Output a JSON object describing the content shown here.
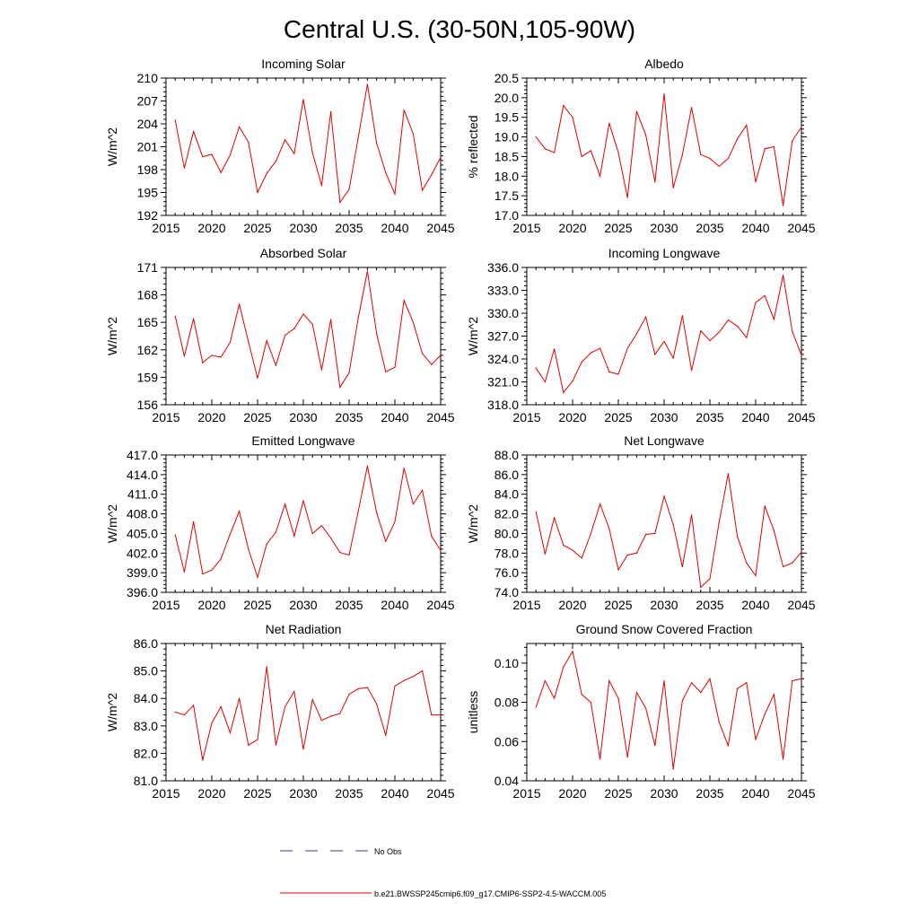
{
  "figure": {
    "title": "Central U.S. (30-50N,105-90W)",
    "legend": {
      "obs_label": "No Obs",
      "model_label": "b.e21.BWSSP245cmip6.f09_g17.CMIP6-SSP2-4.5-WACCM.005",
      "obs_color": "#3a3aa8",
      "model_color": "#e00000"
    }
  },
  "chart_data": [
    {
      "type": "line",
      "title": "Incoming Solar",
      "xlabel": "",
      "ylabel": "W/m^2",
      "xlim": [
        2015,
        2045
      ],
      "ylim": [
        192,
        210
      ],
      "xticks": [
        2015,
        2020,
        2025,
        2030,
        2035,
        2040,
        2045
      ],
      "yticks": [
        192,
        195,
        198,
        201,
        204,
        207,
        210
      ],
      "ytick_labels": [
        "192",
        "195",
        "198",
        "201",
        "204",
        "207",
        "210"
      ],
      "series": [
        {
          "name": "b.e21.BWSSP245cmip6.f09_g17.CMIP6-SSP2-4.5-WACCM.005",
          "x": [
            2016,
            2017,
            2018,
            2019,
            2020,
            2021,
            2022,
            2023,
            2024,
            2025,
            2026,
            2027,
            2028,
            2029,
            2030,
            2031,
            2032,
            2033,
            2034,
            2035,
            2036,
            2037,
            2038,
            2039,
            2040,
            2041,
            2042,
            2043,
            2044,
            2045
          ],
          "values": [
            204.5,
            198.2,
            203.0,
            199.7,
            200.0,
            197.6,
            199.9,
            203.6,
            201.6,
            195.0,
            197.5,
            199.1,
            201.9,
            200.1,
            207.2,
            200.2,
            195.9,
            205.6,
            193.7,
            195.4,
            202.2,
            209.2,
            201.5,
            197.6,
            194.8,
            205.8,
            202.7,
            195.3,
            197.3,
            199.6
          ]
        }
      ]
    },
    {
      "type": "line",
      "title": "Albedo",
      "xlabel": "",
      "ylabel": "% reflected",
      "xlim": [
        2015,
        2045
      ],
      "ylim": [
        17.0,
        20.5
      ],
      "xticks": [
        2015,
        2020,
        2025,
        2030,
        2035,
        2040,
        2045
      ],
      "yticks": [
        17.0,
        17.5,
        18.0,
        18.5,
        19.0,
        19.5,
        20.0,
        20.5
      ],
      "ytick_labels": [
        "17.0",
        "17.5",
        "18.0",
        "18.5",
        "19.0",
        "19.5",
        "20.0",
        "20.5"
      ],
      "series": [
        {
          "name": "b.e21.BWSSP245cmip6.f09_g17.CMIP6-SSP2-4.5-WACCM.005",
          "x": [
            2016,
            2017,
            2018,
            2019,
            2020,
            2021,
            2022,
            2023,
            2024,
            2025,
            2026,
            2027,
            2028,
            2029,
            2030,
            2031,
            2032,
            2033,
            2034,
            2035,
            2036,
            2037,
            2038,
            2039,
            2040,
            2041,
            2042,
            2043,
            2044,
            2045
          ],
          "values": [
            19.0,
            18.7,
            18.6,
            19.8,
            19.5,
            18.5,
            18.65,
            18.0,
            19.35,
            18.6,
            17.45,
            19.65,
            19.05,
            17.85,
            20.1,
            17.7,
            18.55,
            19.75,
            18.55,
            18.45,
            18.25,
            18.45,
            18.95,
            19.3,
            17.85,
            18.7,
            18.75,
            17.25,
            18.9,
            19.25
          ]
        }
      ]
    },
    {
      "type": "line",
      "title": "Absorbed Solar",
      "xlabel": "",
      "ylabel": "W/m^2",
      "xlim": [
        2015,
        2045
      ],
      "ylim": [
        156,
        171
      ],
      "xticks": [
        2015,
        2020,
        2025,
        2030,
        2035,
        2040,
        2045
      ],
      "yticks": [
        156,
        159,
        162,
        165,
        168,
        171
      ],
      "ytick_labels": [
        "156",
        "159",
        "162",
        "165",
        "168",
        "171"
      ],
      "series": [
        {
          "name": "b.e21.BWSSP245cmip6.f09_g17.CMIP6-SSP2-4.5-WACCM.005",
          "x": [
            2016,
            2017,
            2018,
            2019,
            2020,
            2021,
            2022,
            2023,
            2024,
            2025,
            2026,
            2027,
            2028,
            2029,
            2030,
            2031,
            2032,
            2033,
            2034,
            2035,
            2036,
            2037,
            2038,
            2039,
            2040,
            2041,
            2042,
            2043,
            2044,
            2045
          ],
          "values": [
            165.7,
            161.3,
            165.4,
            160.6,
            161.4,
            161.2,
            162.8,
            167.0,
            162.9,
            158.9,
            163.0,
            160.3,
            163.6,
            164.3,
            165.9,
            164.8,
            159.8,
            165.3,
            157.9,
            159.5,
            165.5,
            170.6,
            163.8,
            159.6,
            160.1,
            167.4,
            165.0,
            161.6,
            160.4,
            161.4
          ]
        }
      ]
    },
    {
      "type": "line",
      "title": "Incoming Longwave",
      "xlabel": "",
      "ylabel": "W/m^2",
      "xlim": [
        2015,
        2045
      ],
      "ylim": [
        318.0,
        336.0
      ],
      "xticks": [
        2015,
        2020,
        2025,
        2030,
        2035,
        2040,
        2045
      ],
      "yticks": [
        318.0,
        321.0,
        324.0,
        327.0,
        330.0,
        333.0,
        336.0
      ],
      "ytick_labels": [
        "318.0",
        "321.0",
        "324.0",
        "327.0",
        "330.0",
        "333.0",
        "336.0"
      ],
      "series": [
        {
          "name": "b.e21.BWSSP245cmip6.f09_g17.CMIP6-SSP2-4.5-WACCM.005",
          "x": [
            2016,
            2017,
            2018,
            2019,
            2020,
            2021,
            2022,
            2023,
            2024,
            2025,
            2026,
            2027,
            2028,
            2029,
            2030,
            2031,
            2032,
            2033,
            2034,
            2035,
            2036,
            2037,
            2038,
            2039,
            2040,
            2041,
            2042,
            2043,
            2044,
            2045
          ],
          "values": [
            322.8,
            321.0,
            325.3,
            319.6,
            321.1,
            323.6,
            324.8,
            325.4,
            322.3,
            322.0,
            325.4,
            327.3,
            329.5,
            324.6,
            326.3,
            324.1,
            329.7,
            322.5,
            327.7,
            326.4,
            327.5,
            329.1,
            328.3,
            326.8,
            331.4,
            332.3,
            329.2,
            335.0,
            327.6,
            324.5
          ]
        }
      ]
    },
    {
      "type": "line",
      "title": "Emitted Longwave",
      "xlabel": "",
      "ylabel": "W/m^2",
      "xlim": [
        2015,
        2045
      ],
      "ylim": [
        396.0,
        417.0
      ],
      "xticks": [
        2015,
        2020,
        2025,
        2030,
        2035,
        2040,
        2045
      ],
      "yticks": [
        396.0,
        399.0,
        402.0,
        405.0,
        408.0,
        411.0,
        414.0,
        417.0
      ],
      "ytick_labels": [
        "396.0",
        "399.0",
        "402.0",
        "405.0",
        "408.0",
        "411.0",
        "414.0",
        "417.0"
      ],
      "series": [
        {
          "name": "b.e21.BWSSP245cmip6.f09_g17.CMIP6-SSP2-4.5-WACCM.005",
          "x": [
            2016,
            2017,
            2018,
            2019,
            2020,
            2021,
            2022,
            2023,
            2024,
            2025,
            2026,
            2027,
            2028,
            2029,
            2030,
            2031,
            2032,
            2033,
            2034,
            2035,
            2036,
            2037,
            2038,
            2039,
            2040,
            2041,
            2042,
            2043,
            2044,
            2045
          ],
          "values": [
            404.8,
            399.1,
            406.8,
            398.8,
            399.4,
            401.1,
            404.9,
            408.4,
            402.6,
            398.3,
            403.4,
            405.2,
            409.5,
            404.6,
            410.0,
            405.0,
            406.2,
            404.3,
            402.1,
            401.7,
            408.4,
            415.3,
            408.2,
            403.8,
            406.8,
            415.0,
            409.5,
            411.6,
            404.6,
            402.4
          ]
        }
      ]
    },
    {
      "type": "line",
      "title": "Net Longwave",
      "xlabel": "",
      "ylabel": "W/m^2",
      "xlim": [
        2015,
        2045
      ],
      "ylim": [
        74.0,
        88.0
      ],
      "xticks": [
        2015,
        2020,
        2025,
        2030,
        2035,
        2040,
        2045
      ],
      "yticks": [
        74.0,
        76.0,
        78.0,
        80.0,
        82.0,
        84.0,
        86.0,
        88.0
      ],
      "ytick_labels": [
        "74.0",
        "76.0",
        "78.0",
        "80.0",
        "82.0",
        "84.0",
        "86.0",
        "88.0"
      ],
      "series": [
        {
          "name": "b.e21.BWSSP245cmip6.f09_g17.CMIP6-SSP2-4.5-WACCM.005",
          "x": [
            2016,
            2017,
            2018,
            2019,
            2020,
            2021,
            2022,
            2023,
            2024,
            2025,
            2026,
            2027,
            2028,
            2029,
            2030,
            2031,
            2032,
            2033,
            2034,
            2035,
            2036,
            2037,
            2038,
            2039,
            2040,
            2041,
            2042,
            2043,
            2044,
            2045
          ],
          "values": [
            82.2,
            77.9,
            81.6,
            78.8,
            78.3,
            77.5,
            80.0,
            83.0,
            80.5,
            76.3,
            77.8,
            78.0,
            79.9,
            80.0,
            83.8,
            80.9,
            76.6,
            81.9,
            74.5,
            75.4,
            81.1,
            86.1,
            79.7,
            77.0,
            75.7,
            82.8,
            80.3,
            76.6,
            77.0,
            78.1
          ]
        }
      ]
    },
    {
      "type": "line",
      "title": "Net Radiation",
      "xlabel": "",
      "ylabel": "W/m^2",
      "xlim": [
        2015,
        2045
      ],
      "ylim": [
        81.0,
        86.0
      ],
      "xticks": [
        2015,
        2020,
        2025,
        2030,
        2035,
        2040,
        2045
      ],
      "yticks": [
        81.0,
        82.0,
        83.0,
        84.0,
        85.0,
        86.0
      ],
      "ytick_labels": [
        "81.0",
        "82.0",
        "83.0",
        "84.0",
        "85.0",
        "86.0"
      ],
      "series": [
        {
          "name": "b.e21.BWSSP245cmip6.f09_g17.CMIP6-SSP2-4.5-WACCM.005",
          "x": [
            2016,
            2017,
            2018,
            2019,
            2020,
            2021,
            2022,
            2023,
            2024,
            2025,
            2026,
            2027,
            2028,
            2029,
            2030,
            2031,
            2032,
            2033,
            2034,
            2035,
            2036,
            2037,
            2038,
            2039,
            2040,
            2041,
            2042,
            2043,
            2044,
            2045
          ],
          "values": [
            83.5,
            83.4,
            83.75,
            81.75,
            83.1,
            83.7,
            82.75,
            84.0,
            82.3,
            82.5,
            85.15,
            82.3,
            83.7,
            84.25,
            82.15,
            83.95,
            83.2,
            83.35,
            83.45,
            84.15,
            84.35,
            84.4,
            83.8,
            82.65,
            84.45,
            84.65,
            84.8,
            85.0,
            83.4,
            83.4
          ]
        }
      ]
    },
    {
      "type": "line",
      "title": "Ground Snow Covered Fraction",
      "xlabel": "",
      "ylabel": "unitless",
      "xlim": [
        2015,
        2045
      ],
      "ylim": [
        0.04,
        0.11
      ],
      "xticks": [
        2015,
        2020,
        2025,
        2030,
        2035,
        2040,
        2045
      ],
      "yticks": [
        0.04,
        0.06,
        0.08,
        0.1
      ],
      "ytick_labels": [
        "0.04",
        "0.06",
        "0.08",
        "0.10"
      ],
      "series": [
        {
          "name": "b.e21.BWSSP245cmip6.f09_g17.CMIP6-SSP2-4.5-WACCM.005",
          "x": [
            2016,
            2017,
            2018,
            2019,
            2020,
            2021,
            2022,
            2023,
            2024,
            2025,
            2026,
            2027,
            2028,
            2029,
            2030,
            2031,
            2032,
            2033,
            2034,
            2035,
            2036,
            2037,
            2038,
            2039,
            2040,
            2041,
            2042,
            2043,
            2044,
            2045
          ],
          "values": [
            0.0775,
            0.091,
            0.082,
            0.098,
            0.106,
            0.084,
            0.08,
            0.051,
            0.091,
            0.082,
            0.052,
            0.085,
            0.077,
            0.058,
            0.091,
            0.046,
            0.081,
            0.09,
            0.085,
            0.092,
            0.07,
            0.058,
            0.087,
            0.09,
            0.061,
            0.074,
            0.084,
            0.051,
            0.091,
            0.092
          ]
        }
      ]
    }
  ]
}
